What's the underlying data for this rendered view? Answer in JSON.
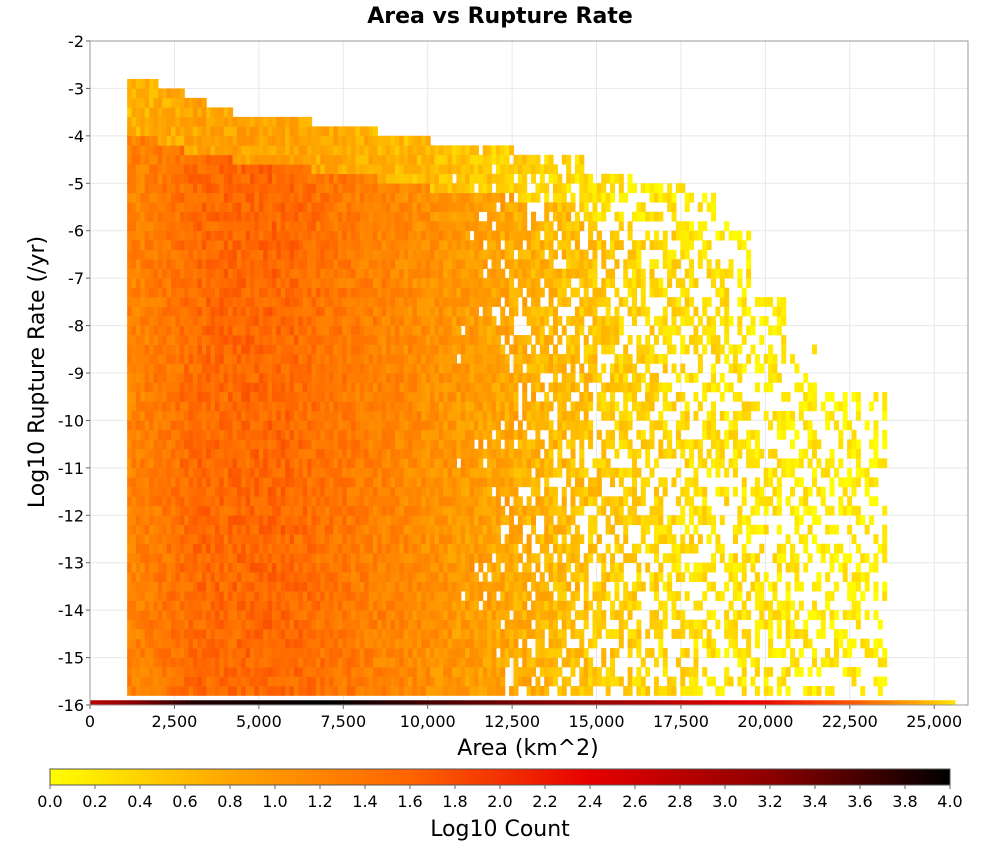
{
  "chart_data": {
    "type": "heatmap",
    "title": "Area vs Rupture Rate",
    "xlabel": "Area (km^2)",
    "ylabel": "Log10 Rupture Rate (/yr)",
    "xlim": [
      0,
      26000
    ],
    "ylim": [
      -16,
      -2
    ],
    "x_ticks": [
      0,
      2500,
      5000,
      7500,
      10000,
      12500,
      15000,
      17500,
      20000,
      22500,
      25000
    ],
    "x_tick_labels": [
      "0",
      "2,500",
      "5,000",
      "7,500",
      "10,000",
      "12,500",
      "15,000",
      "17,500",
      "20,000",
      "22,500",
      "25,000"
    ],
    "y_ticks": [
      -2,
      -3,
      -4,
      -5,
      -6,
      -7,
      -8,
      -9,
      -10,
      -11,
      -12,
      -13,
      -14,
      -15,
      -16
    ],
    "y_tick_labels": [
      "-2",
      "-3",
      "-4",
      "-5",
      "-6",
      "-7",
      "-8",
      "-9",
      "-10",
      "-11",
      "-12",
      "-13",
      "-14",
      "-15",
      "-16"
    ],
    "grid": true,
    "bin_size": {
      "area": 130,
      "log_rate": 0.2
    },
    "colorbar": {
      "label": "Log10 Count",
      "min": 0.0,
      "max": 4.0,
      "ticks": [
        0.0,
        0.2,
        0.4,
        0.6,
        0.8,
        1.0,
        1.2,
        1.4,
        1.6,
        1.8,
        2.0,
        2.2,
        2.4,
        2.6,
        2.8,
        3.0,
        3.2,
        3.4,
        3.6,
        3.8,
        4.0
      ],
      "tick_labels": [
        "0.0",
        "0.2",
        "0.4",
        "0.6",
        "0.8",
        "1.0",
        "1.2",
        "1.4",
        "1.6",
        "1.8",
        "2.0",
        "2.2",
        "2.4",
        "2.6",
        "2.8",
        "3.0",
        "3.2",
        "3.4",
        "3.6",
        "3.8",
        "4.0"
      ],
      "colors": [
        "#ffff00",
        "#ffa500",
        "#ff6400",
        "#e60000",
        "#8c0000",
        "#000000"
      ]
    },
    "columns": [
      {
        "x_start": 1100,
        "x_end": 2000,
        "top": -3.0
      },
      {
        "x_start": 2000,
        "x_end": 2700,
        "top": -3.2
      },
      {
        "x_start": 2700,
        "x_end": 3400,
        "top": -3.4
      },
      {
        "x_start": 3400,
        "x_end": 4100,
        "top": -3.6
      },
      {
        "x_start": 4100,
        "x_end": 6500,
        "top": -3.8
      },
      {
        "x_start": 6500,
        "x_end": 8500,
        "top": -4.0
      },
      {
        "x_start": 8500,
        "x_end": 10000,
        "top": -4.2
      },
      {
        "x_start": 10000,
        "x_end": 12500,
        "top": -4.4
      },
      {
        "x_start": 12500,
        "x_end": 14500,
        "top": -4.6
      },
      {
        "x_start": 14500,
        "x_end": 16000,
        "top": -5.0
      },
      {
        "x_start": 16000,
        "x_end": 17500,
        "top": -5.2
      },
      {
        "x_start": 17500,
        "x_end": 18500,
        "top": -5.4
      },
      {
        "x_start": 18500,
        "x_end": 19500,
        "top": -6.0
      },
      {
        "x_start": 19500,
        "x_end": 20500,
        "top": -7.5
      },
      {
        "x_start": 20500,
        "x_end": 21500,
        "top": -8.5
      },
      {
        "x_start": 21500,
        "x_end": 23500,
        "top": -9.5
      }
    ],
    "bottom_row": {
      "log_rate": -16,
      "x_start": 0,
      "x_end": 25600,
      "values": [
        {
          "x": 0,
          "v": 2.8
        },
        {
          "x": 3000,
          "v": 3.8
        },
        {
          "x": 7000,
          "v": 4.0
        },
        {
          "x": 10000,
          "v": 3.6
        },
        {
          "x": 15000,
          "v": 3.1
        },
        {
          "x": 20000,
          "v": 2.3
        },
        {
          "x": 22500,
          "v": 1.7
        },
        {
          "x": 24000,
          "v": 1.0
        },
        {
          "x": 25600,
          "v": 0.2
        }
      ]
    },
    "density_profile": [
      {
        "x": 1100,
        "v": 1.2
      },
      {
        "x": 3000,
        "v": 1.5
      },
      {
        "x": 5500,
        "v": 1.55
      },
      {
        "x": 8000,
        "v": 1.3
      },
      {
        "x": 10500,
        "v": 1.0
      },
      {
        "x": 13500,
        "v": 0.65
      },
      {
        "x": 16000,
        "v": 0.4
      },
      {
        "x": 19000,
        "v": 0.25
      },
      {
        "x": 23500,
        "v": 0.1
      }
    ]
  }
}
